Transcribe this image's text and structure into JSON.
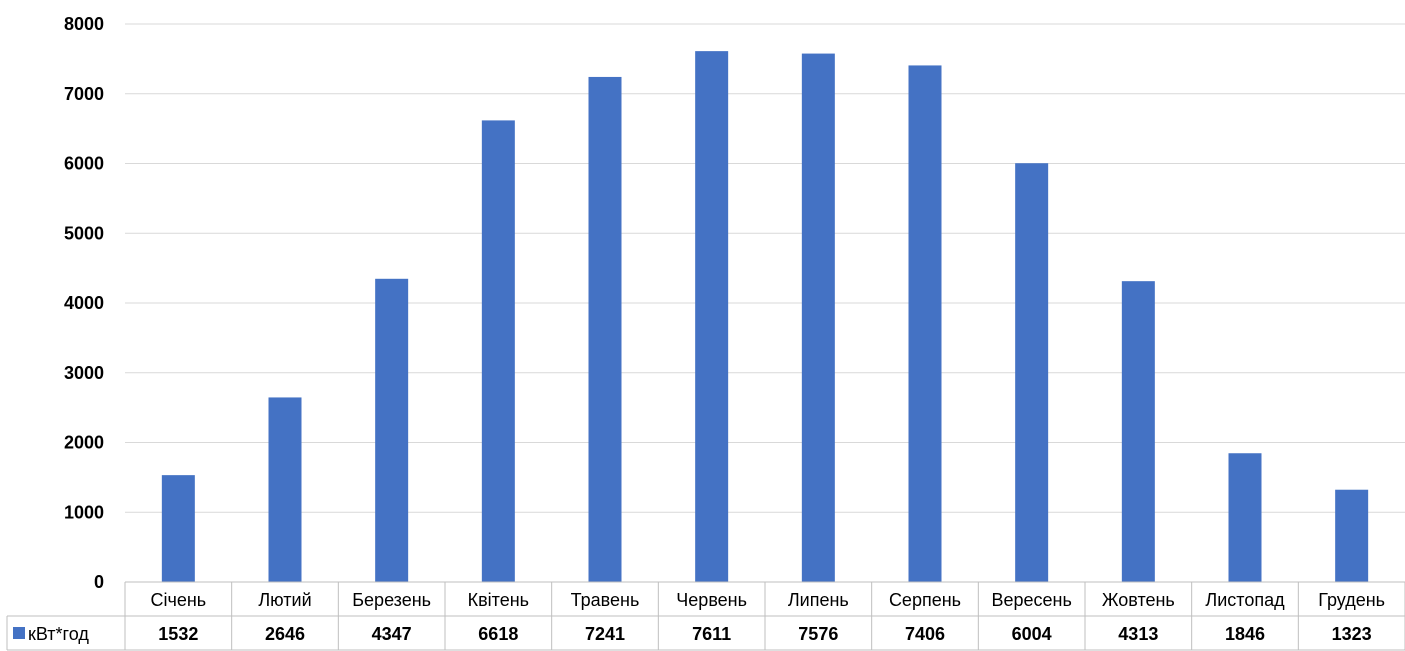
{
  "chart_data": {
    "type": "bar",
    "categories": [
      "Січень",
      "Лютий",
      "Березень",
      "Квітень",
      "Травень",
      "Червень",
      "Липень",
      "Серпень",
      "Вересень",
      "Жовтень",
      "Листопад",
      "Грудень"
    ],
    "series": [
      {
        "name": "кВт*год",
        "values": [
          1532,
          2646,
          4347,
          6618,
          7241,
          7611,
          7576,
          7406,
          6004,
          4313,
          1846,
          1323
        ],
        "color": "#4472C4"
      }
    ],
    "ylim": [
      0,
      8000
    ],
    "yticks": [
      0,
      1000,
      2000,
      3000,
      4000,
      5000,
      6000,
      7000,
      8000
    ],
    "grid": true,
    "legend": "data-table",
    "data_table": true
  }
}
